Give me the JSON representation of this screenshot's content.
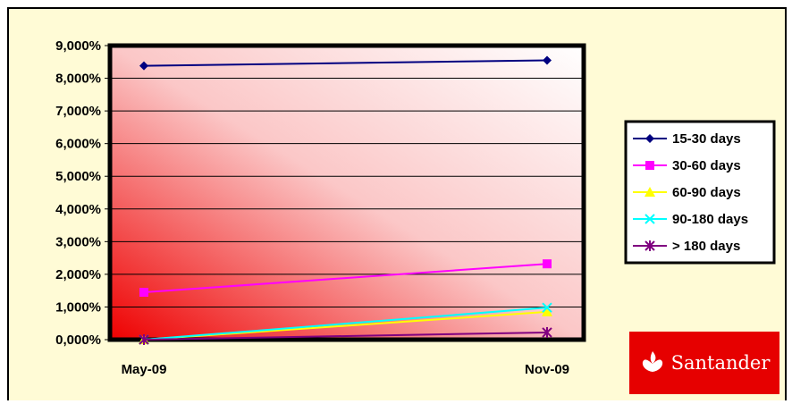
{
  "chart_data": {
    "type": "line",
    "categories": [
      "May-09",
      "Nov-09"
    ],
    "y_ticks": [
      "0,000%",
      "1,000%",
      "2,000%",
      "3,000%",
      "4,000%",
      "5,000%",
      "6,000%",
      "7,000%",
      "8,000%",
      "9,000%"
    ],
    "ylim": [
      0,
      9
    ],
    "grid": true,
    "legend_position": "right",
    "series": [
      {
        "name": "15-30 days",
        "values": [
          8.38,
          8.55
        ],
        "color": "#000080",
        "marker": "diamond"
      },
      {
        "name": "30-60 days",
        "values": [
          1.45,
          2.32
        ],
        "color": "#ff00ff",
        "marker": "square"
      },
      {
        "name": "60-90 days",
        "values": [
          0.0,
          0.85
        ],
        "color": "#ffff00",
        "marker": "triangle"
      },
      {
        "name": "90-180 days",
        "values": [
          0.0,
          0.98
        ],
        "color": "#00ffff",
        "marker": "x"
      },
      {
        "name": "> 180 days",
        "values": [
          0.0,
          0.22
        ],
        "color": "#800080",
        "marker": "star"
      }
    ]
  },
  "logo": {
    "text": "Santander",
    "icon": "santander-flame-icon",
    "background": "#e60000"
  }
}
